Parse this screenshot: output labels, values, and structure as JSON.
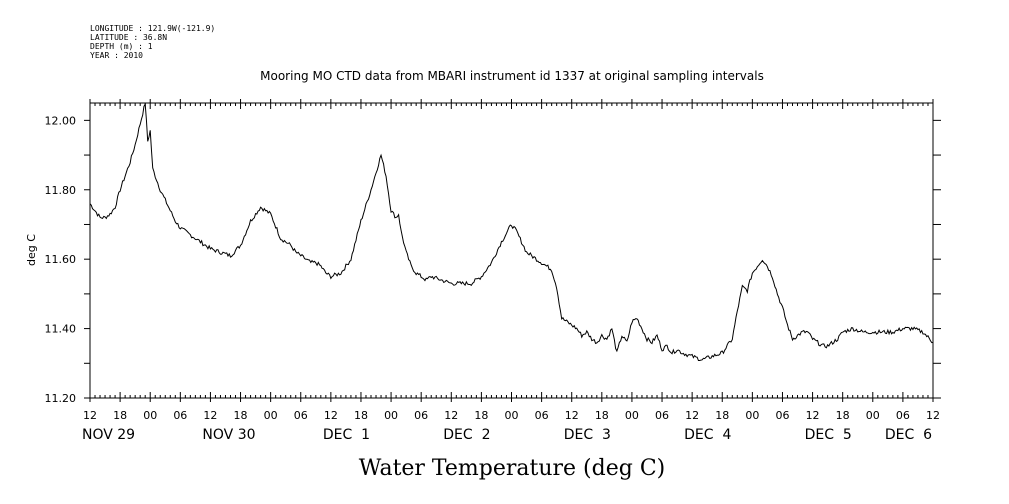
{
  "meta": {
    "longitude": "LONGITUDE : 121.9W(-121.9)",
    "latitude": "LATITUDE : 36.8N",
    "depth": "DEPTH (m) : 1",
    "year": "YEAR : 2010"
  },
  "chart_data": {
    "type": "line",
    "title": "Mooring MO CTD data from MBARI instrument id 1337 at original sampling intervals",
    "xlabel": "Water Temperature (deg C)",
    "ylabel": "deg C",
    "ylim": [
      11.2,
      12.05
    ],
    "x_unit": "hours since 2010-11-29 00:00",
    "xlim": [
      12,
      180
    ],
    "yticks": [
      "11.20",
      "11.40",
      "11.60",
      "11.80",
      "12.00"
    ],
    "ytick_values": [
      11.2,
      11.4,
      11.6,
      11.8,
      12.0
    ],
    "xtick_labels": [
      "12",
      "18",
      "00",
      "06",
      "12",
      "18",
      "00",
      "06",
      "12",
      "18",
      "00",
      "06",
      "12",
      "18",
      "00",
      "06",
      "12",
      "18",
      "00",
      "06",
      "12",
      "18",
      "00",
      "06",
      "12",
      "18",
      "00",
      "06",
      "12"
    ],
    "date_labels": [
      "NOV 29",
      "NOV 30",
      "DEC  1",
      "DEC  2",
      "DEC  3",
      "DEC  4",
      "DEC  5",
      "DEC  6"
    ],
    "date_label_hours": [
      12,
      36,
      60,
      84,
      108,
      132,
      156,
      172
    ],
    "grid": false,
    "series": [
      {
        "x": [
          12,
          13,
          14,
          15,
          16,
          17,
          18,
          19,
          20,
          21,
          22,
          23,
          23.5,
          24,
          24.5,
          25,
          25.5,
          26,
          27,
          28,
          29,
          30,
          32,
          34,
          36,
          38,
          40,
          42,
          44,
          46,
          48,
          50,
          52,
          53,
          54,
          55,
          56,
          57,
          58,
          59,
          60,
          62,
          64,
          66,
          68,
          70,
          71,
          72,
          73,
          73.5,
          74,
          75,
          76,
          77,
          78,
          79,
          80,
          82,
          84,
          86,
          88,
          90,
          92,
          94,
          96,
          97,
          98,
          99,
          100,
          101,
          102,
          103,
          104,
          105,
          106,
          107,
          108,
          109,
          110,
          111,
          112,
          113,
          114,
          115,
          116,
          117,
          118,
          119,
          120,
          121,
          122,
          123,
          124,
          125,
          126,
          127,
          128,
          129,
          130,
          132,
          134,
          136,
          138,
          140,
          141,
          142,
          143,
          144,
          145,
          146,
          147,
          148,
          149,
          150,
          151,
          152,
          153,
          154,
          155,
          156,
          157,
          158,
          159,
          160,
          161,
          162,
          164,
          166,
          168,
          170,
          172,
          174,
          176,
          178,
          180
        ],
        "y": [
          11.76,
          11.74,
          11.72,
          11.72,
          11.73,
          11.75,
          11.8,
          11.84,
          11.88,
          11.93,
          11.99,
          12.05,
          11.94,
          11.97,
          11.86,
          11.84,
          11.82,
          11.8,
          11.77,
          11.74,
          11.71,
          11.69,
          11.67,
          11.65,
          11.63,
          11.62,
          11.61,
          11.64,
          11.71,
          11.75,
          11.73,
          11.66,
          11.64,
          11.62,
          11.61,
          11.6,
          11.59,
          11.59,
          11.58,
          11.56,
          11.55,
          11.56,
          11.6,
          11.71,
          11.8,
          11.9,
          11.84,
          11.74,
          11.72,
          11.73,
          11.68,
          11.62,
          11.58,
          11.56,
          11.55,
          11.54,
          11.55,
          11.54,
          11.53,
          11.53,
          11.53,
          11.55,
          11.59,
          11.65,
          11.7,
          11.68,
          11.65,
          11.62,
          11.61,
          11.6,
          11.59,
          11.58,
          11.57,
          11.52,
          11.43,
          11.42,
          11.41,
          11.4,
          11.38,
          11.39,
          11.37,
          11.36,
          11.38,
          11.37,
          11.4,
          11.33,
          11.38,
          11.36,
          11.42,
          11.43,
          11.4,
          11.37,
          11.36,
          11.38,
          11.34,
          11.35,
          11.33,
          11.34,
          11.33,
          11.32,
          11.31,
          11.32,
          11.33,
          11.37,
          11.45,
          11.52,
          11.51,
          11.56,
          11.58,
          11.6,
          11.58,
          11.55,
          11.5,
          11.46,
          11.41,
          11.37,
          11.38,
          11.39,
          11.39,
          11.37,
          11.36,
          11.35,
          11.35,
          11.36,
          11.37,
          11.39,
          11.4,
          11.39,
          11.39,
          11.39,
          11.39,
          11.4,
          11.4,
          11.39,
          11.36
        ]
      }
    ]
  }
}
